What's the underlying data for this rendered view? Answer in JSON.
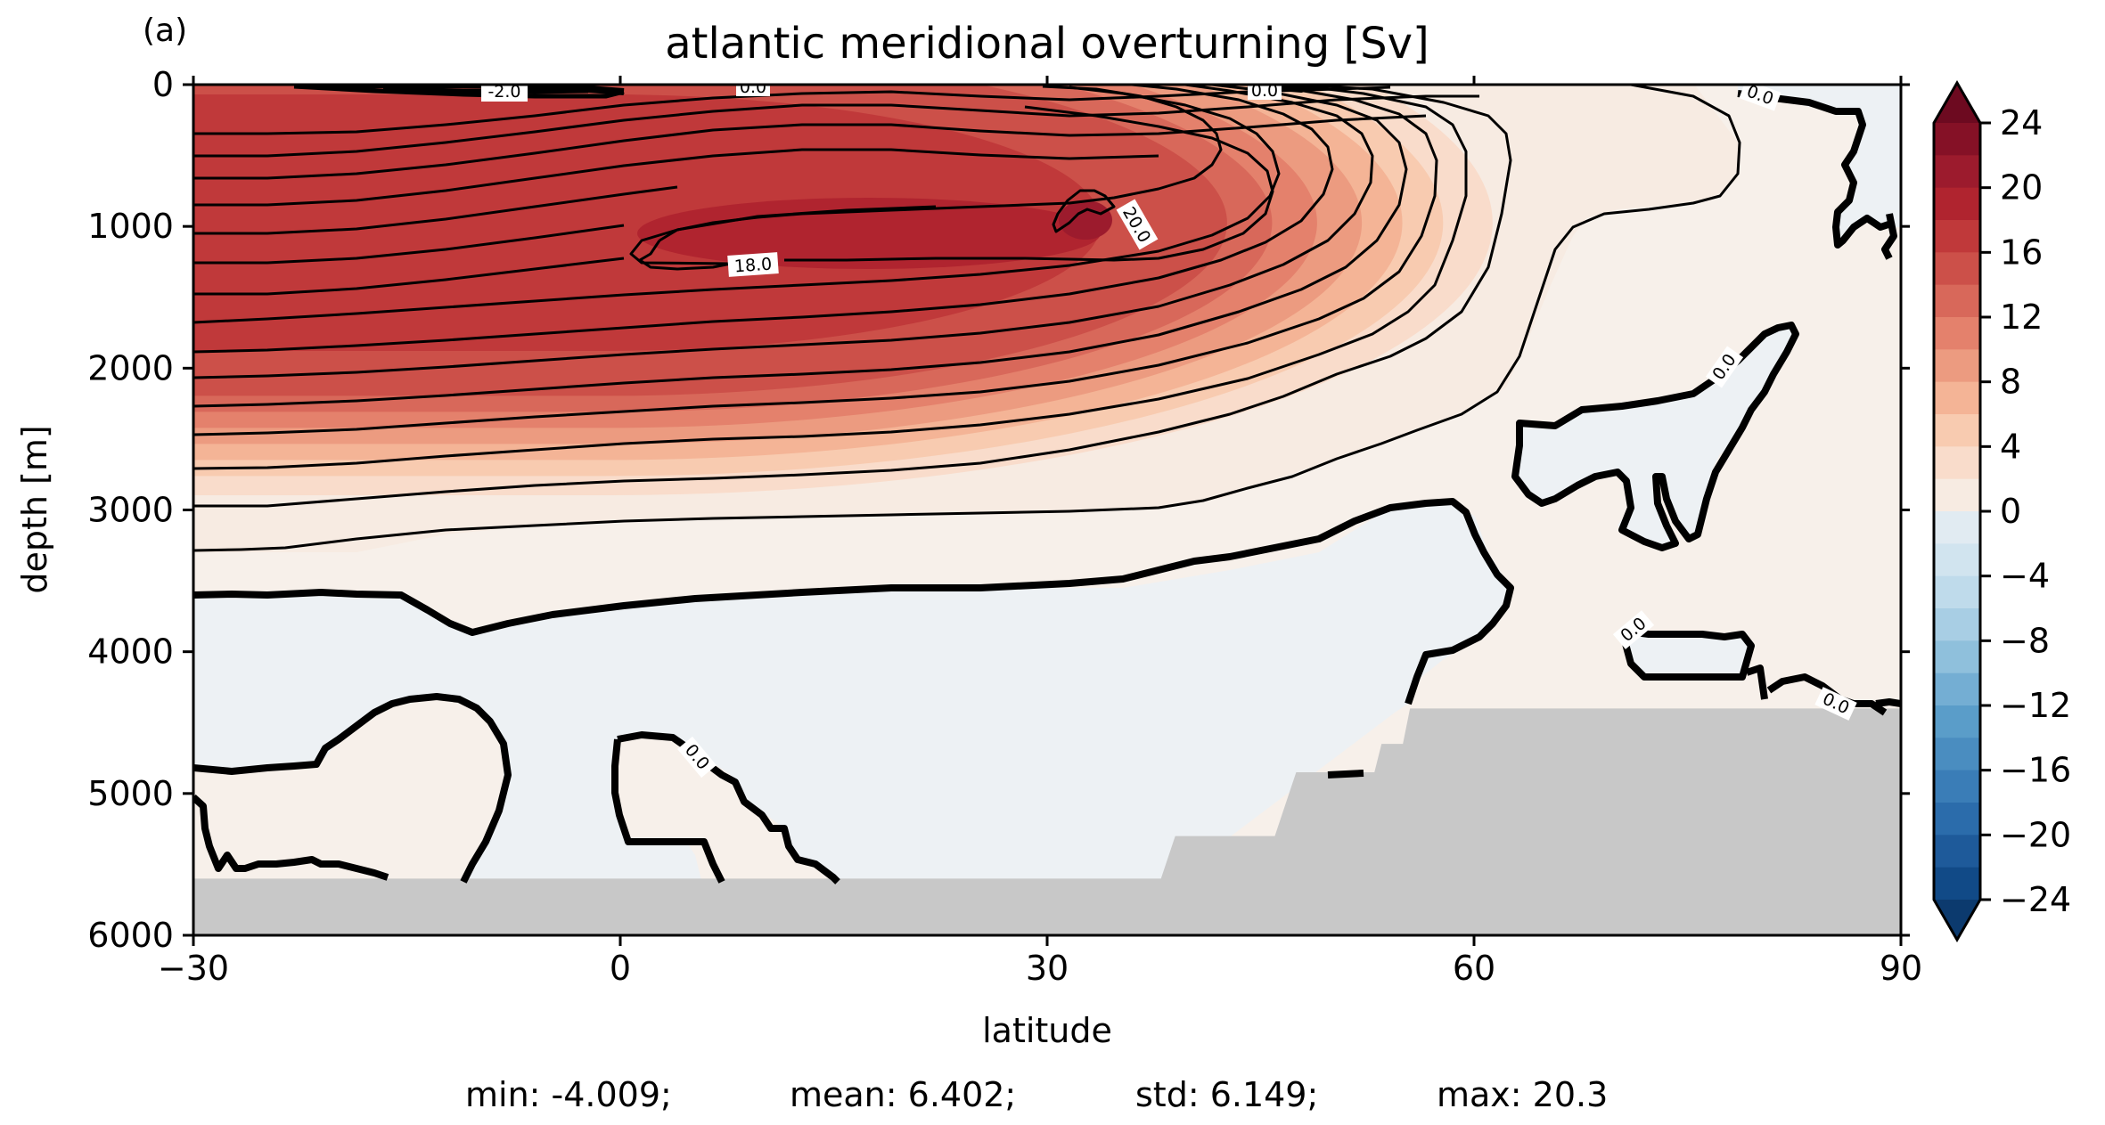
{
  "panel_label": "(a)",
  "stats": {
    "min": "min: -4.009;",
    "mean": "mean: 6.402;",
    "std": "std: 6.149;",
    "max": "max: 20.3"
  },
  "chart_data": {
    "type": "contour",
    "title": "atlantic meridional overturning [Sv]",
    "xlabel": "latitude",
    "ylabel": "depth [m]",
    "xlim": [
      -30,
      90
    ],
    "ylim": [
      6000,
      0
    ],
    "x_ticks": [
      -30,
      0,
      30,
      60,
      90
    ],
    "x_tick_labels": [
      "−30",
      "0",
      "30",
      "60",
      "90"
    ],
    "y_ticks": [
      0,
      1000,
      2000,
      3000,
      4000,
      5000,
      6000
    ],
    "y_tick_labels": [
      "0",
      "1000",
      "2000",
      "3000",
      "4000",
      "5000",
      "6000"
    ],
    "colormap": "RdBu_r",
    "levels": [
      -24,
      24
    ],
    "level_step": 2,
    "colorbar": {
      "ticks": [
        24,
        20,
        16,
        12,
        8,
        4,
        0,
        -4,
        -8,
        -12,
        -16,
        -20,
        -24
      ],
      "tick_labels": [
        "24",
        "20",
        "16",
        "12",
        "8",
        "4",
        "0",
        "−4",
        "−8",
        "−12",
        "−16",
        "−20",
        "−24"
      ],
      "extend": "both",
      "colors_top_to_bottom": [
        "#851126",
        "#9c1b2d",
        "#b0242f",
        "#c0393a",
        "#cc5049",
        "#d8685a",
        "#e4816c",
        "#ec9b80",
        "#f4b496",
        "#f8cbb0",
        "#f9dccb",
        "#f7ebe2",
        "#f0f1f3",
        "#e1ebf2",
        "#d1e4ef",
        "#bfdbeb",
        "#a8cee4",
        "#8fc0dc",
        "#74aed3",
        "#5a9dc9",
        "#4a8dc0",
        "#3a7db7",
        "#2b6cab",
        "#1e5a9a",
        "#114a87"
      ],
      "extend_top_color": "#6d0a20",
      "extend_bottom_color": "#0c3a6e"
    },
    "contour_labels": [
      "-2.0",
      "0.0",
      "0.0",
      "0.0",
      "18.0",
      "20.0",
      "0.0",
      "0.0",
      "0.0",
      "0.0"
    ],
    "overturning_cell": {
      "peak_latitude": 33,
      "peak_depth": 1000,
      "peak_value": 20.3
    },
    "bathymetry": [
      {
        "lat": -30,
        "depth": 5600
      },
      {
        "lat": 38,
        "depth": 5600
      },
      {
        "lat": 39,
        "depth": 5300
      },
      {
        "lat": 46,
        "depth": 5300
      },
      {
        "lat": 47.5,
        "depth": 4850
      },
      {
        "lat": 53,
        "depth": 4850
      },
      {
        "lat": 53.5,
        "depth": 4650
      },
      {
        "lat": 55,
        "depth": 4650
      },
      {
        "lat": 55.5,
        "depth": 4400
      },
      {
        "lat": 90,
        "depth": 4400
      }
    ],
    "land_color": "#c8c8c8"
  }
}
